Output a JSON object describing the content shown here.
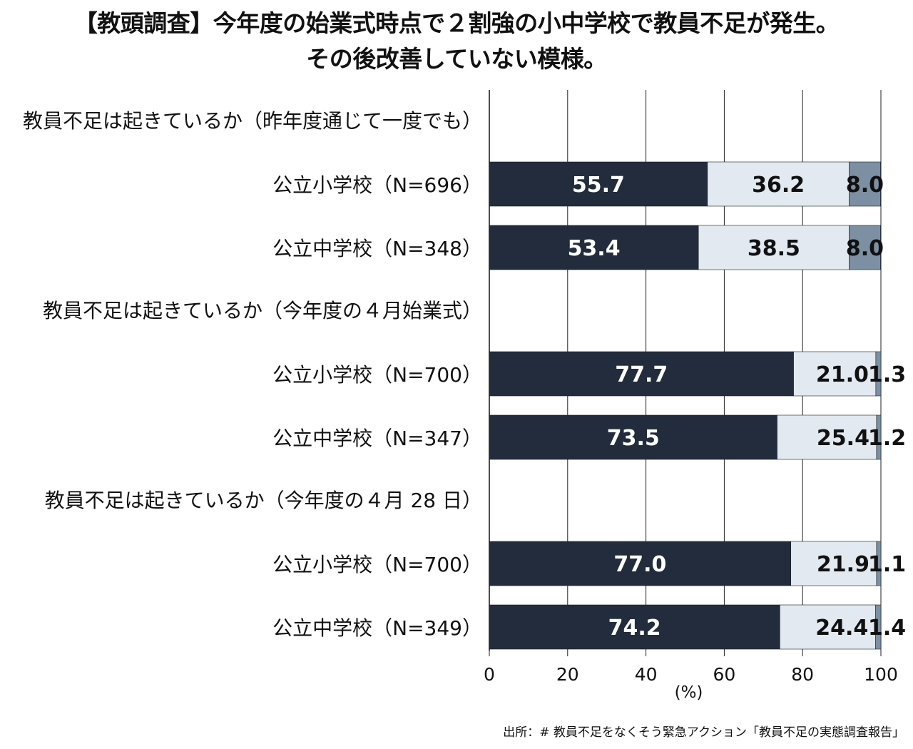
{
  "title": {
    "line1": "【教頭調査】今年度の始業式時点で２割強の小中学校で教員不足が発生。",
    "line2": "その後改善していない模様。"
  },
  "source": "出所：# 教員不足をなくそう緊急アクション「教員不足の実態調査報告」",
  "chart_data": {
    "type": "bar",
    "orientation": "horizontal",
    "stacked": true,
    "xlabel": "(%)",
    "xlim": [
      0,
      100
    ],
    "xticks": [
      0,
      20,
      40,
      60,
      80,
      100
    ],
    "grid": true,
    "legend": null,
    "groups": [
      {
        "label": "教員不足は起きているか（昨年度通じて一度でも）",
        "rows": [
          {
            "label": "公立小学校（N=696）",
            "values": [
              55.7,
              36.2,
              8.0
            ],
            "value_labels": [
              "55.7",
              "36.2",
              "8.0"
            ]
          },
          {
            "label": "公立中学校（N=348）",
            "values": [
              53.4,
              38.5,
              8.0
            ],
            "value_labels": [
              "53.4",
              "38.5",
              "8.0"
            ]
          }
        ]
      },
      {
        "label": "教員不足は起きているか（今年度の４月始業式）",
        "rows": [
          {
            "label": "公立小学校（N=700）",
            "values": [
              77.7,
              21.0,
              1.3
            ],
            "value_labels": [
              "77.7",
              "21.0",
              "1.3"
            ]
          },
          {
            "label": "公立中学校（N=347）",
            "values": [
              73.5,
              25.4,
              1.2
            ],
            "value_labels": [
              "73.5",
              "25.4",
              "1.2"
            ]
          }
        ]
      },
      {
        "label": "教員不足は起きているか（今年度の４月 28 日）",
        "rows": [
          {
            "label": "公立小学校（N=700）",
            "values": [
              77.0,
              21.9,
              1.1
            ],
            "value_labels": [
              "77.0",
              "21.9",
              "1.1"
            ]
          },
          {
            "label": "公立中学校（N=349）",
            "values": [
              74.2,
              24.4,
              1.4
            ],
            "value_labels": [
              "74.2",
              "24.4",
              "1.4"
            ]
          }
        ]
      }
    ],
    "segment_colors": [
      "#222c3c",
      "#e2e9f1",
      "#7d8fa3"
    ],
    "segment_label_colors": [
      "#ffffff",
      "#111111",
      "#111111"
    ]
  }
}
